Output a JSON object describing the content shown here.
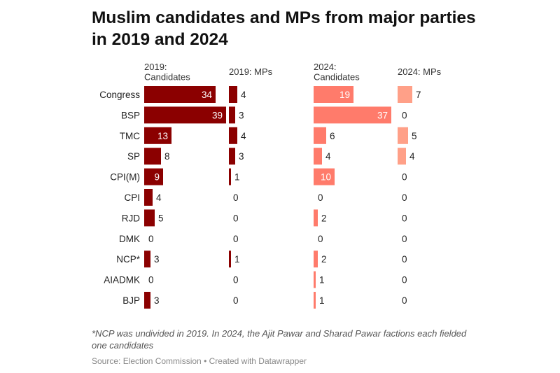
{
  "title": "Muslim candidates and MPs from major parties in 2019 and 2024",
  "footnote": "*NCP was undivided in 2019. In 2024, the Ajit Pawar and Sharad Pawar factions each fielded one candidates",
  "source": "Source: Election Commission",
  "credit": "Created with Datawrapper",
  "colors": {
    "dark": "#8b0000",
    "light": "#ff7b6b",
    "lighter": "#ffa088"
  },
  "chart_data": {
    "type": "bar",
    "orientation": "horizontal",
    "categories": [
      "Congress",
      "BSP",
      "TMC",
      "SP",
      "CPI(M)",
      "CPI",
      "RJD",
      "DMK",
      "NCP*",
      "AIADMK",
      "BJP"
    ],
    "series": [
      {
        "key": "c2019",
        "name": "2019: Candidates",
        "header_lines": [
          "2019:",
          "Candidates"
        ],
        "values": [
          34,
          39,
          13,
          8,
          9,
          4,
          5,
          0,
          3,
          0,
          3
        ]
      },
      {
        "key": "m2019",
        "name": "2019: MPs",
        "header_lines": [
          "2019: MPs"
        ],
        "values": [
          4,
          3,
          4,
          3,
          1,
          0,
          0,
          0,
          1,
          0,
          0
        ]
      },
      {
        "key": "c2024",
        "name": "2024: Candidates",
        "header_lines": [
          "2024:",
          "Candidates"
        ],
        "values": [
          19,
          37,
          6,
          4,
          10,
          0,
          2,
          0,
          2,
          1,
          1
        ]
      },
      {
        "key": "m2024",
        "name": "2024: MPs",
        "header_lines": [
          "2024: MPs"
        ],
        "values": [
          7,
          0,
          5,
          4,
          0,
          0,
          0,
          0,
          0,
          0,
          0
        ]
      }
    ],
    "xlim": [
      0,
      39
    ]
  }
}
